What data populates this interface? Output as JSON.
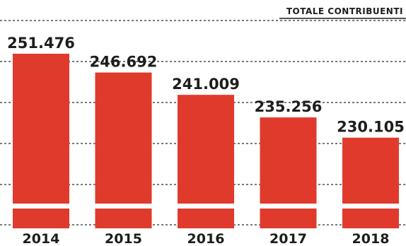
{
  "chart_data": {
    "type": "bar",
    "title": "TOTALE CONTRIBUENTI",
    "categories": [
      "2014",
      "2015",
      "2016",
      "2017",
      "2018"
    ],
    "values": [
      251476,
      246692,
      241009,
      235256,
      230105
    ],
    "value_labels": [
      "251.476",
      "246.692",
      "241.009",
      "235.256",
      "230.105"
    ],
    "grid": true,
    "bar_color": "#e03a2c",
    "xlabel": "",
    "ylabel": ""
  }
}
